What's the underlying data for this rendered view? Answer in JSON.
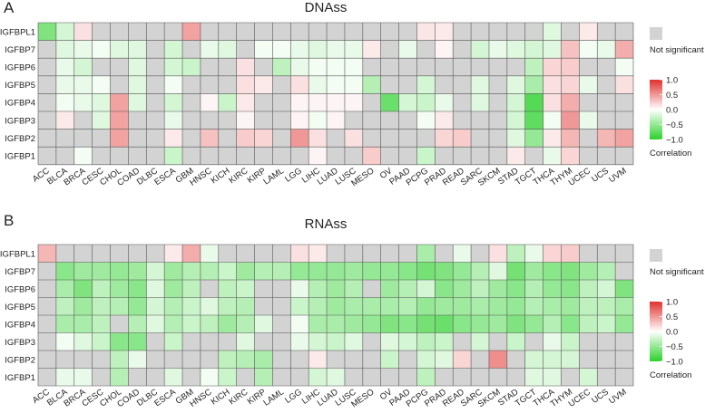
{
  "colors": {
    "ns": "#d3d3d3",
    "neg": "#2bd12b",
    "mid": "#ffffff",
    "pos": "#e0312f",
    "grid": "#555555"
  },
  "chart_data": [
    {
      "type": "heatmap",
      "panel_label": "A",
      "title": "DNAss",
      "x": [
        "ACC",
        "BLCA",
        "BRCA",
        "CESC",
        "CHOL",
        "COAD",
        "DLBC",
        "ESCA",
        "GBM",
        "HNSC",
        "KICH",
        "KIRC",
        "KIRP",
        "LAML",
        "LGG",
        "LIHC",
        "LUAD",
        "LUSC",
        "MESO",
        "OV",
        "PAAD",
        "PCPG",
        "PRAD",
        "READ",
        "SARC",
        "SKCM",
        "STAD",
        "TGCT",
        "THCA",
        "THYM",
        "UCEC",
        "UCS",
        "UVM"
      ],
      "y": [
        "IGFBPL1",
        "IGFBP7",
        "IGFBP6",
        "IGFBP5",
        "IGFBP4",
        "IGFBP3",
        "IGFBP2",
        "IGFBP1"
      ],
      "values": [
        [
          -0.6,
          -0.2,
          0.15,
          null,
          null,
          null,
          null,
          null,
          0.45,
          null,
          null,
          null,
          null,
          null,
          null,
          null,
          null,
          null,
          null,
          null,
          null,
          0.12,
          0.1,
          null,
          null,
          null,
          null,
          null,
          -0.15,
          null,
          0.1,
          null,
          null
        ],
        [
          null,
          -0.15,
          -0.1,
          -0.05,
          -0.15,
          -0.15,
          null,
          -0.2,
          null,
          -0.1,
          -0.15,
          null,
          -0.05,
          -0.05,
          -0.1,
          -0.15,
          -0.1,
          -0.1,
          0.1,
          null,
          -0.1,
          null,
          0.05,
          null,
          -0.2,
          -0.1,
          -0.15,
          -0.2,
          -0.15,
          0.3,
          -0.05,
          -0.1,
          0.4
        ],
        [
          null,
          -0.1,
          -0.2,
          null,
          null,
          -0.15,
          null,
          -0.2,
          -0.25,
          null,
          null,
          0.15,
          null,
          -0.3,
          -0.1,
          -0.05,
          -0.05,
          -0.05,
          null,
          null,
          null,
          null,
          null,
          null,
          null,
          null,
          null,
          -0.3,
          0.2,
          0.25,
          null,
          null,
          -0.05
        ],
        [
          null,
          -0.1,
          -0.1,
          -0.05,
          null,
          -0.15,
          null,
          -0.05,
          null,
          null,
          null,
          0.15,
          0.1,
          null,
          0.15,
          -0.1,
          -0.05,
          -0.05,
          -0.35,
          null,
          null,
          -0.2,
          null,
          null,
          -0.15,
          null,
          -0.15,
          -0.4,
          0.15,
          0.2,
          -0.1,
          null,
          0.15
        ],
        [
          null,
          -0.05,
          -0.1,
          -0.15,
          0.45,
          -0.15,
          null,
          -0.2,
          null,
          0.05,
          -0.25,
          0.1,
          null,
          null,
          0.05,
          0.05,
          0.05,
          0.05,
          null,
          -0.7,
          -0.2,
          -0.25,
          -0.1,
          null,
          -0.15,
          null,
          -0.2,
          -0.8,
          0.15,
          0.4,
          null,
          null,
          null
        ],
        [
          null,
          0.1,
          null,
          -0.15,
          0.45,
          null,
          null,
          -0.1,
          null,
          null,
          null,
          0.05,
          null,
          null,
          0.05,
          -0.05,
          0.05,
          null,
          null,
          null,
          null,
          -0.05,
          0.1,
          null,
          null,
          null,
          -0.2,
          -0.75,
          -0.05,
          0.5,
          -0.1,
          null,
          null
        ],
        [
          null,
          null,
          null,
          null,
          0.45,
          null,
          null,
          0.1,
          null,
          0.3,
          null,
          0.25,
          0.2,
          null,
          0.5,
          0.15,
          null,
          0.15,
          null,
          null,
          null,
          null,
          0.2,
          0.25,
          null,
          null,
          -0.15,
          -0.5,
          0.1,
          0.35,
          null,
          0.35,
          0.45
        ],
        [
          null,
          null,
          -0.05,
          null,
          null,
          null,
          null,
          -0.25,
          null,
          null,
          null,
          null,
          null,
          null,
          null,
          0.05,
          null,
          null,
          0.25,
          null,
          null,
          -0.25,
          null,
          null,
          null,
          null,
          0.1,
          null,
          -0.1,
          0.2,
          null,
          null,
          null
        ]
      ],
      "colorbar": {
        "title": "Correlation",
        "ticks": [
          "1.0",
          "0.5",
          "0.0",
          "−0.5",
          "−1.0"
        ],
        "range": [
          -1,
          1
        ]
      },
      "legend_na": "Not significant"
    },
    {
      "type": "heatmap",
      "panel_label": "B",
      "title": "RNAss",
      "x": [
        "ACC",
        "BLCA",
        "BRCA",
        "CESC",
        "CHOL",
        "COAD",
        "DLBC",
        "ESCA",
        "GBM",
        "HNSC",
        "KICH",
        "KIRC",
        "KIRP",
        "LAML",
        "LGG",
        "LIHC",
        "LUAD",
        "LUSC",
        "MESO",
        "OV",
        "PAAD",
        "PCPG",
        "PRAD",
        "READ",
        "SARC",
        "SKCM",
        "STAD",
        "TGCT",
        "THCA",
        "THYM",
        "UCEC",
        "UCS",
        "UVM"
      ],
      "y": [
        "IGFBPL1",
        "IGFBP7",
        "IGFBP6",
        "IGFBP5",
        "IGFBP4",
        "IGFBP3",
        "IGFBP2",
        "IGFBP1"
      ],
      "values": [
        [
          0.35,
          null,
          null,
          null,
          null,
          null,
          null,
          0.1,
          0.4,
          -0.1,
          null,
          null,
          null,
          null,
          0.15,
          0.1,
          null,
          null,
          null,
          null,
          null,
          -0.4,
          null,
          -0.1,
          null,
          0.15,
          -0.3,
          -0.1,
          0.2,
          0.25,
          null,
          null,
          null
        ],
        [
          null,
          -0.55,
          -0.45,
          -0.45,
          -0.5,
          -0.45,
          -0.2,
          -0.45,
          -0.35,
          -0.35,
          -0.25,
          -0.45,
          -0.35,
          -0.35,
          -0.5,
          -0.5,
          -0.5,
          -0.45,
          -0.5,
          -0.5,
          -0.55,
          -0.65,
          -0.6,
          -0.5,
          -0.35,
          -0.15,
          -0.65,
          -0.45,
          -0.55,
          -0.6,
          -0.45,
          -0.35,
          null
        ],
        [
          null,
          -0.4,
          -0.6,
          -0.3,
          -0.45,
          -0.55,
          -0.15,
          -0.45,
          -0.3,
          null,
          -0.3,
          -0.25,
          null,
          null,
          -0.1,
          -0.35,
          -0.45,
          -0.35,
          null,
          -0.45,
          -0.35,
          -0.2,
          -0.55,
          -0.45,
          -0.3,
          -0.45,
          -0.55,
          -0.35,
          -0.5,
          -0.55,
          -0.3,
          -0.2,
          -0.6
        ],
        [
          null,
          -0.3,
          -0.45,
          -0.3,
          -0.35,
          -0.5,
          -0.2,
          -0.35,
          -0.25,
          -0.15,
          -0.3,
          -0.35,
          null,
          null,
          -0.25,
          -0.35,
          -0.45,
          -0.4,
          -0.4,
          -0.4,
          -0.35,
          -0.5,
          -0.45,
          -0.45,
          -0.4,
          -0.45,
          -0.5,
          -0.35,
          -0.4,
          -0.45,
          -0.3,
          -0.3,
          -0.4
        ],
        [
          null,
          -0.4,
          -0.4,
          -0.3,
          null,
          -0.35,
          -0.15,
          -0.35,
          -0.25,
          -0.3,
          -0.45,
          -0.35,
          -0.15,
          null,
          -0.05,
          -0.4,
          -0.4,
          -0.45,
          -0.5,
          -0.6,
          -0.55,
          -0.65,
          -0.7,
          -0.55,
          -0.5,
          -0.45,
          -0.6,
          -0.5,
          -0.35,
          -0.55,
          -0.3,
          -0.25,
          -0.5
        ],
        [
          null,
          -0.05,
          -0.15,
          -0.25,
          -0.55,
          -0.55,
          null,
          -0.25,
          null,
          null,
          null,
          -0.15,
          null,
          null,
          -0.1,
          -0.2,
          -0.25,
          -0.15,
          null,
          -0.15,
          -0.2,
          -0.3,
          -0.25,
          null,
          -0.2,
          null,
          -0.25,
          null,
          -0.1,
          -0.25,
          null,
          null,
          null
        ],
        [
          null,
          null,
          null,
          null,
          -0.3,
          -0.1,
          null,
          null,
          null,
          null,
          -0.3,
          -0.35,
          -0.4,
          null,
          null,
          0.1,
          null,
          null,
          null,
          -0.25,
          null,
          -0.2,
          -0.15,
          0.2,
          null,
          0.55,
          null,
          -0.2,
          -0.2,
          -0.2,
          null,
          null,
          null
        ],
        [
          null,
          -0.1,
          -0.1,
          null,
          -0.35,
          null,
          null,
          -0.15,
          null,
          -0.05,
          -0.25,
          null,
          -0.35,
          null,
          null,
          -0.2,
          -0.15,
          null,
          null,
          null,
          null,
          -0.3,
          null,
          null,
          null,
          null,
          null,
          -0.15,
          -0.15,
          null,
          -0.2,
          null,
          null
        ]
      ],
      "colorbar": {
        "title": "Correlation",
        "ticks": [
          "1.0",
          "0.5",
          "0.0",
          "−0.5",
          "−1.0"
        ],
        "range": [
          -1,
          1
        ]
      },
      "legend_na": "Not significant"
    }
  ]
}
